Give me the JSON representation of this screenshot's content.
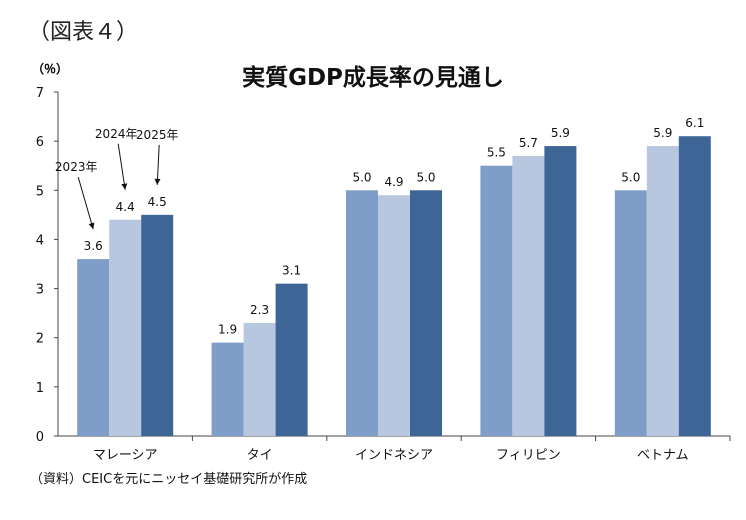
{
  "figure_label": "（図表４）",
  "source_note": "（資料）CEICを元にニッセイ基礎研究所が作成",
  "chart_data": {
    "type": "bar",
    "title": "実質GDP成長率の見通し",
    "ylabel": "（％）",
    "xlabel": "",
    "ylim": [
      0,
      7
    ],
    "yticks": [
      0,
      1,
      2,
      3,
      4,
      5,
      6,
      7
    ],
    "grid": false,
    "categories": [
      "マレーシア",
      "タイ",
      "インドネシア",
      "フィリピン",
      "ベトナム"
    ],
    "series": [
      {
        "name": "2023年",
        "values": [
          3.6,
          1.9,
          5.0,
          5.5,
          5.0
        ],
        "color": "#7f9dc9",
        "labels": [
          "3.6",
          "1.9",
          "5.0",
          "5.5",
          "5.0"
        ]
      },
      {
        "name": "2024年",
        "values": [
          4.4,
          2.3,
          4.9,
          5.7,
          5.9
        ],
        "color": "#b8c7e0",
        "labels": [
          "4.4",
          "2.3",
          "4.9",
          "5.7",
          "5.9"
        ]
      },
      {
        "name": "2025年",
        "values": [
          4.5,
          3.1,
          5.0,
          5.9,
          6.1
        ],
        "color": "#3d6595",
        "labels": [
          "4.5",
          "3.1",
          "5.0",
          "5.9",
          "6.1"
        ]
      }
    ],
    "annotations": [
      "2023年",
      "2024年",
      "2025年"
    ]
  }
}
